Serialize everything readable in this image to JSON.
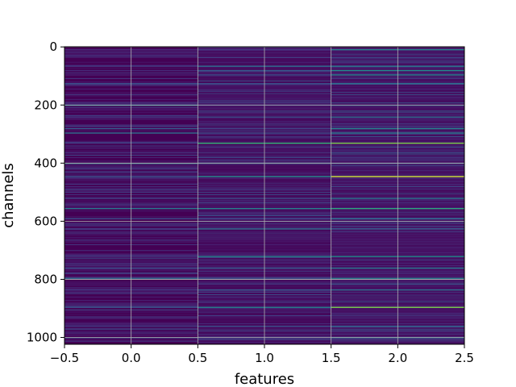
{
  "chart_data": {
    "type": "heatmap",
    "title": "",
    "xlabel": "features",
    "ylabel": "channels",
    "x_columns": [
      0,
      1,
      2
    ],
    "xlim": [
      -0.5,
      2.5
    ],
    "ylim": [
      1023.5,
      -0.5
    ],
    "y_inverted": true,
    "n_rows": 1024,
    "xticks": [
      -0.5,
      0.0,
      0.5,
      1.0,
      1.5,
      2.0,
      2.5
    ],
    "xtick_labels": [
      "−0.5",
      "0.0",
      "0.5",
      "1.0",
      "1.5",
      "2.0",
      "2.5"
    ],
    "yticks": [
      0,
      200,
      400,
      600,
      800,
      1000
    ],
    "ytick_labels": [
      "0",
      "200",
      "400",
      "600",
      "800",
      "1000"
    ],
    "grid": true,
    "colormap": "viridis",
    "background_color": "#440154",
    "highlight_rows": [
      {
        "row": 8,
        "values": [
          0.15,
          0.2,
          0.55
        ]
      },
      {
        "row": 65,
        "values": [
          0.2,
          0.45,
          0.5
        ]
      },
      {
        "row": 80,
        "values": [
          0.15,
          0.35,
          0.6
        ]
      },
      {
        "row": 95,
        "values": [
          0.1,
          0.3,
          0.55
        ]
      },
      {
        "row": 125,
        "values": [
          0.3,
          0.3,
          0.45
        ]
      },
      {
        "row": 200,
        "values": [
          0.45,
          0.2,
          0.3
        ]
      },
      {
        "row": 240,
        "values": [
          0.2,
          0.3,
          0.45
        ]
      },
      {
        "row": 280,
        "values": [
          0.35,
          0.25,
          0.55
        ]
      },
      {
        "row": 295,
        "values": [
          0.45,
          0.3,
          0.5
        ]
      },
      {
        "row": 330,
        "values": [
          0.2,
          0.75,
          0.85
        ]
      },
      {
        "row": 400,
        "values": [
          0.45,
          0.3,
          0.3
        ]
      },
      {
        "row": 445,
        "values": [
          0.3,
          0.6,
          0.95
        ]
      },
      {
        "row": 520,
        "values": [
          0.25,
          0.3,
          0.5
        ]
      },
      {
        "row": 555,
        "values": [
          0.5,
          0.55,
          0.7
        ]
      },
      {
        "row": 590,
        "values": [
          0.3,
          0.25,
          0.45
        ]
      },
      {
        "row": 625,
        "values": [
          0.2,
          0.45,
          0.35
        ]
      },
      {
        "row": 720,
        "values": [
          0.2,
          0.55,
          0.6
        ]
      },
      {
        "row": 760,
        "values": [
          0.3,
          0.35,
          0.5
        ]
      },
      {
        "row": 795,
        "values": [
          0.45,
          0.3,
          0.55
        ]
      },
      {
        "row": 835,
        "values": [
          0.2,
          0.35,
          0.45
        ]
      },
      {
        "row": 895,
        "values": [
          0.3,
          0.55,
          0.85
        ]
      },
      {
        "row": 960,
        "values": [
          0.2,
          0.3,
          0.4
        ]
      },
      {
        "row": 1000,
        "values": [
          0.3,
          0.2,
          0.45
        ]
      }
    ]
  }
}
